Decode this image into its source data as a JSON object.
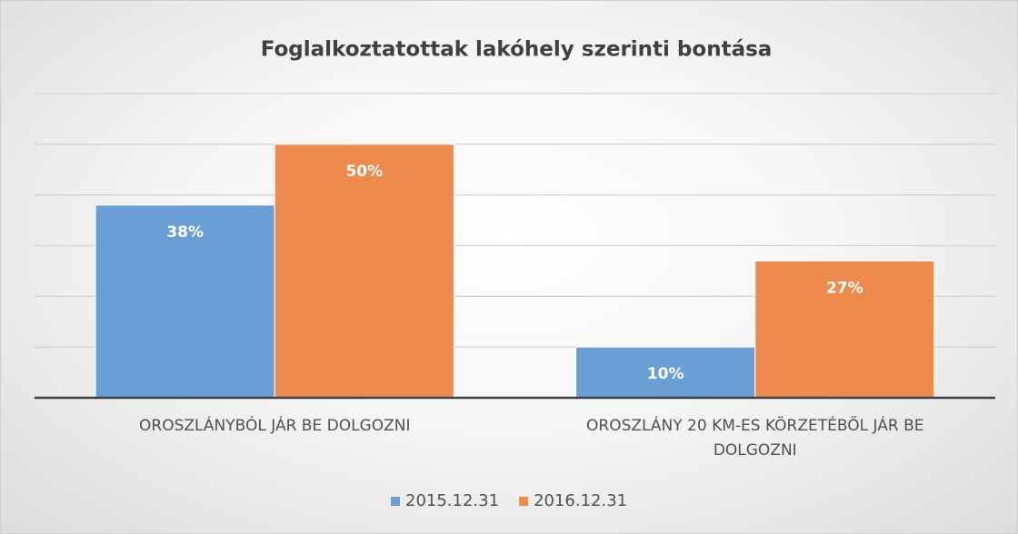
{
  "chart_data": {
    "type": "bar",
    "title": "Foglalkoztatottak lakóhely szerinti bontása",
    "categories": [
      "OROSZLÁNYBÓL JÁR BE DOLGOZNI",
      "OROSZLÁNY 20 KM-ES KÖRZETÉBŐL JÁR BE DOLGOZNI"
    ],
    "series": [
      {
        "name": "2015.12.31",
        "color": "#6a9fd6",
        "values": [
          38,
          10
        ],
        "value_labels": [
          "38%",
          "10%"
        ]
      },
      {
        "name": "2016.12.31",
        "color": "#ee8a4b",
        "values": [
          50,
          27
        ],
        "value_labels": [
          "50%",
          "27%"
        ]
      }
    ],
    "ylim": [
      0,
      60
    ],
    "yticks": [
      0,
      10,
      20,
      30,
      40,
      50,
      60
    ],
    "grid": true,
    "legend": "bottom"
  }
}
